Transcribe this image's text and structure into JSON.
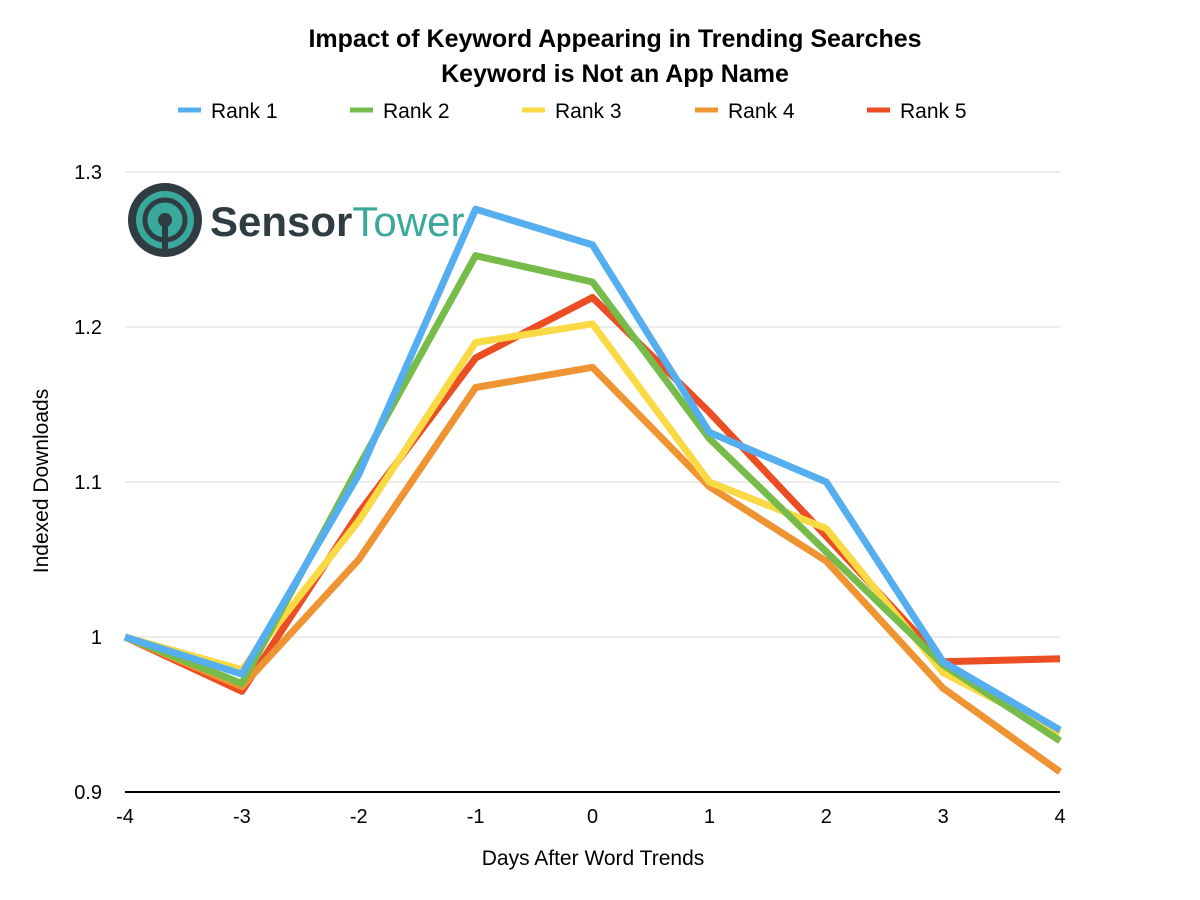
{
  "chart_data": {
    "type": "line",
    "title": "Impact of Keyword Appearing in Trending Searches",
    "subtitle": "Keyword is Not an App Name",
    "xlabel": "Days After Word Trends",
    "ylabel": "Indexed Downloads",
    "x": [
      -4,
      -3,
      -2,
      -1,
      0,
      1,
      2,
      3,
      4
    ],
    "x_tick_labels": [
      "-4",
      "-3",
      "-2",
      "-1",
      "0",
      "1",
      "2",
      "3",
      "4"
    ],
    "y_tick_labels": [
      "0.9",
      "1",
      "1.1",
      "1.2",
      "1.3"
    ],
    "y_ticks": [
      0.9,
      1.0,
      1.1,
      1.2,
      1.3
    ],
    "ylim": [
      0.9,
      1.3
    ],
    "xlim": [
      -4,
      4
    ],
    "grid": true,
    "legend_position": "top",
    "series": [
      {
        "name": "Rank 1",
        "color": "#55aef0",
        "values": [
          1.0,
          0.976,
          1.105,
          1.276,
          1.253,
          1.132,
          1.1,
          0.984,
          0.94
        ]
      },
      {
        "name": "Rank 2",
        "color": "#77bb4a",
        "values": [
          1.0,
          0.97,
          1.11,
          1.246,
          1.229,
          1.128,
          1.055,
          0.982,
          0.933
        ]
      },
      {
        "name": "Rank 3",
        "color": "#f9da44",
        "values": [
          1.0,
          0.979,
          1.075,
          1.19,
          1.202,
          1.1,
          1.07,
          0.977,
          0.938
        ]
      },
      {
        "name": "Rank 4",
        "color": "#ef9433",
        "values": [
          1.0,
          0.968,
          1.05,
          1.161,
          1.174,
          1.097,
          1.049,
          0.967,
          0.913
        ]
      },
      {
        "name": "Rank 5",
        "color": "#ec4e24",
        "values": [
          1.0,
          0.965,
          1.08,
          1.18,
          1.219,
          1.145,
          1.065,
          0.984,
          0.986
        ]
      }
    ]
  },
  "logo": {
    "part1": "Sensor",
    "part2": "Tower",
    "icon": "sensor-tower-logo-icon",
    "colors": {
      "dark": "#2f3d42",
      "teal": "#3aa89a"
    }
  }
}
